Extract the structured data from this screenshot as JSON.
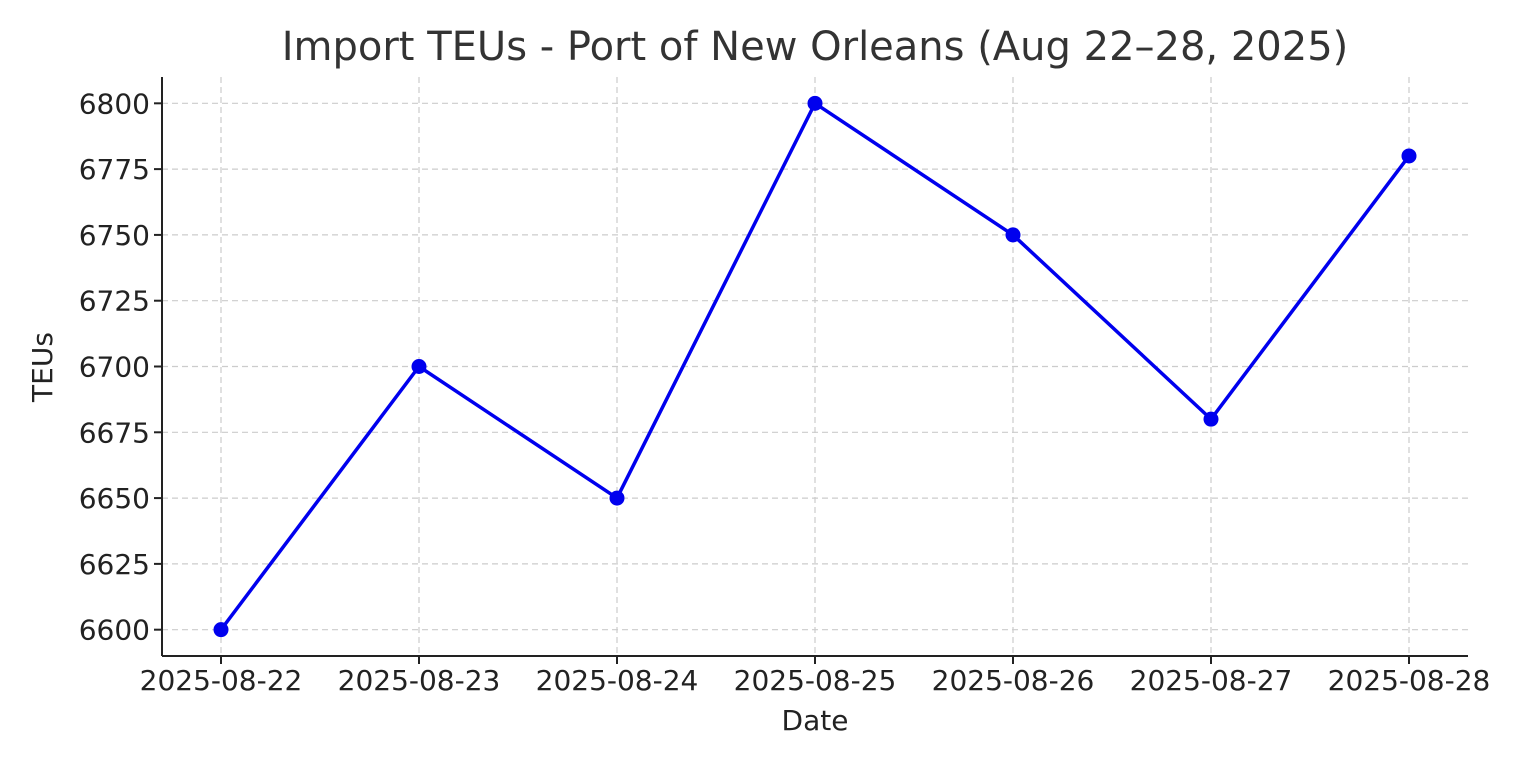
{
  "chart_data": {
    "type": "line",
    "title": "Import TEUs - Port of New Orleans (Aug 22–28, 2025)",
    "xlabel": "Date",
    "ylabel": "TEUs",
    "categories": [
      "2025-08-22",
      "2025-08-23",
      "2025-08-24",
      "2025-08-25",
      "2025-08-26",
      "2025-08-27",
      "2025-08-28"
    ],
    "series": [
      {
        "values": [
          6600,
          6700,
          6650,
          6800,
          6750,
          6680,
          6780
        ]
      }
    ],
    "ylim": [
      6590,
      6810
    ],
    "yticks": [
      6600,
      6625,
      6650,
      6675,
      6700,
      6725,
      6750,
      6775,
      6800
    ],
    "grid": true,
    "line_color": "#0000ee",
    "marker": "circle"
  }
}
